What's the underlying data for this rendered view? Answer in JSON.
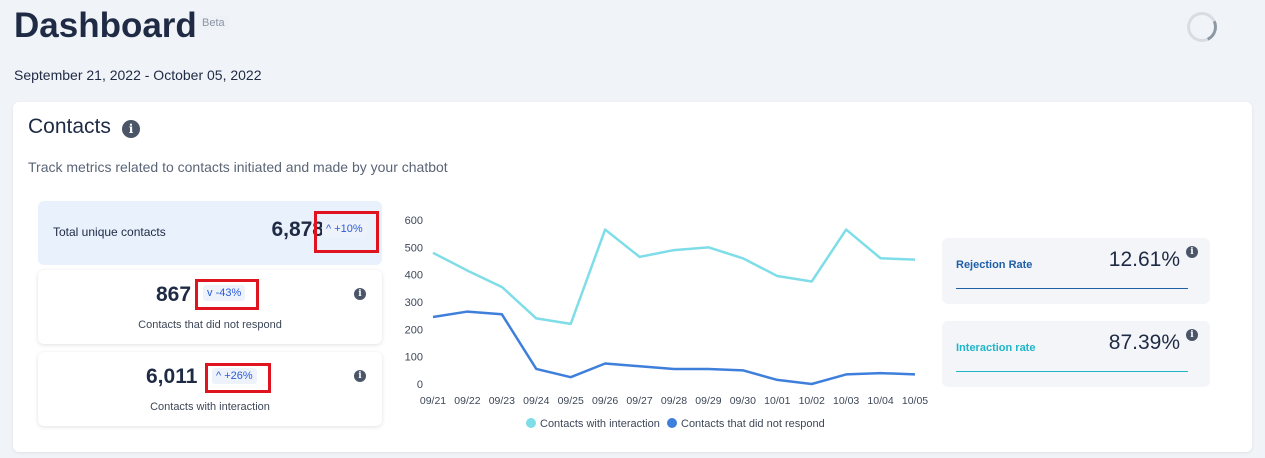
{
  "header": {
    "title": "Dashboard",
    "badge": "Beta",
    "date_range": "September 21, 2022 - October 05, 2022"
  },
  "contacts": {
    "title": "Contacts",
    "info_icon": "i",
    "subtitle": "Track metrics related to contacts initiated and made by your chatbot",
    "total": {
      "label": "Total unique contacts",
      "value": "6,878",
      "trend": "+10%",
      "trend_icon": "^"
    },
    "no_response": {
      "label": "Contacts that did not respond",
      "value": "867",
      "trend": "-43%",
      "trend_icon": "v"
    },
    "interaction": {
      "label": "Contacts with interaction",
      "value": "6,011",
      "trend": "+26%",
      "trend_icon": "^"
    }
  },
  "rates": {
    "rejection": {
      "label": "Rejection Rate",
      "value": "12.61%",
      "color": "#1f5fa8"
    },
    "interaction": {
      "label": "Interaction rate",
      "value": "87.39%",
      "color": "#1fb6c9"
    }
  },
  "colors": {
    "highlight": "#e0141e",
    "series_interaction": "#7fdde8",
    "series_no_response": "#3f7fdc"
  },
  "chart_data": {
    "type": "line",
    "categories": [
      "09/21",
      "09/22",
      "09/23",
      "09/24",
      "09/25",
      "09/26",
      "09/27",
      "09/28",
      "09/29",
      "09/30",
      "10/01",
      "10/02",
      "10/03",
      "10/04",
      "10/05"
    ],
    "series": [
      {
        "name": "Contacts with interaction",
        "values": [
          480,
          415,
          355,
          240,
          220,
          565,
          465,
          490,
          500,
          460,
          395,
          375,
          565,
          460,
          455
        ]
      },
      {
        "name": "Contacts that did not respond",
        "values": [
          245,
          265,
          255,
          55,
          25,
          75,
          65,
          55,
          55,
          50,
          15,
          0,
          35,
          40,
          35
        ]
      }
    ],
    "ylim": [
      0,
      600
    ],
    "yticks": [
      0,
      100,
      200,
      300,
      400,
      500,
      600
    ],
    "grid": false,
    "legend": "bottom"
  }
}
